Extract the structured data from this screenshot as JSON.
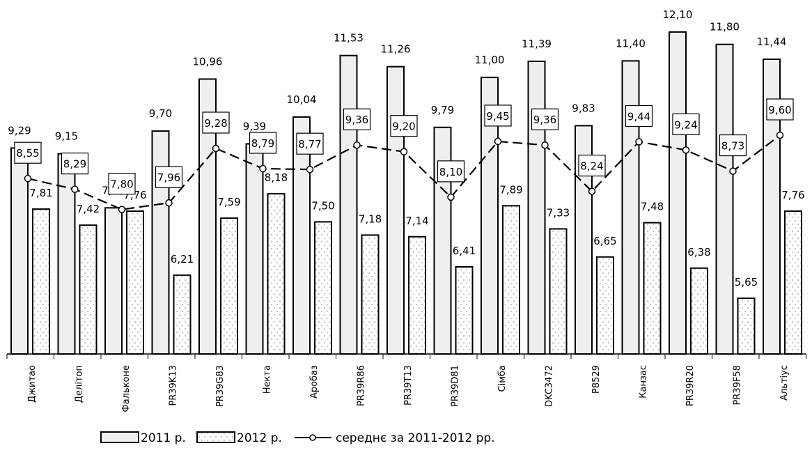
{
  "chart_data": {
    "type": "bar",
    "categories": [
      "Джитао",
      "Делітоп",
      "Фальконе",
      "PR39K13",
      "PR39G83",
      "Некта",
      "Аробаз",
      "PR39R86",
      "PR39T13",
      "PR39D81",
      "Сімба",
      "DKC3472",
      "P8529",
      "Канзас",
      "PR39R20",
      "PR39F58",
      "Альтіус"
    ],
    "series": [
      {
        "name": "2011 р.",
        "type": "bar",
        "pattern": "plain",
        "values": [
          9.29,
          9.15,
          7.84,
          9.7,
          10.96,
          9.39,
          10.04,
          11.53,
          11.26,
          9.79,
          11.0,
          11.39,
          9.83,
          11.4,
          12.1,
          11.8,
          11.44
        ],
        "labels": [
          "9,29",
          "9,15",
          "7,84",
          "9,70",
          "10,96",
          "9,39",
          "10,04",
          "11,53",
          "11,26",
          "9,79",
          "11,00",
          "11,39",
          "9,83",
          "11,40",
          "12,10",
          "11,80",
          "11,44"
        ]
      },
      {
        "name": "2012 р.",
        "type": "bar",
        "pattern": "dotted",
        "values": [
          7.81,
          7.42,
          7.76,
          6.21,
          7.59,
          8.18,
          7.5,
          7.18,
          7.14,
          6.41,
          7.89,
          7.33,
          6.65,
          7.48,
          6.38,
          5.65,
          7.76
        ],
        "labels": [
          "7,81",
          "7,42",
          "7,76",
          "6,21",
          "7,59",
          "8,18",
          "7,50",
          "7,18",
          "7,14",
          "6,41",
          "7,89",
          "7,33",
          "6,65",
          "7,48",
          "6,38",
          "5,65",
          "7,76"
        ]
      },
      {
        "name": "середнє за 2011-2012 рр.",
        "type": "line",
        "style": "dashed-with-circles",
        "values": [
          8.55,
          8.29,
          7.8,
          7.96,
          9.28,
          8.79,
          8.77,
          9.36,
          9.2,
          8.1,
          9.45,
          9.36,
          8.24,
          9.44,
          9.24,
          8.73,
          9.6
        ],
        "labels": [
          "8,55",
          "8,29",
          "7,80",
          "7,96",
          "9,28",
          "8,79",
          "8,77",
          "9,36",
          "9,20",
          "8,10",
          "9,45",
          "9,36",
          "8,24",
          "9,44",
          "9,24",
          "8,73",
          "9,60"
        ]
      }
    ],
    "ylim": [
      4.3,
      12.2
    ],
    "grid": false,
    "legend_position": "bottom",
    "colors": {
      "bar_fill": "#efefef",
      "stroke": "#000000",
      "dot": "#9a9a9a",
      "marker_fill": "#ffffff"
    }
  }
}
